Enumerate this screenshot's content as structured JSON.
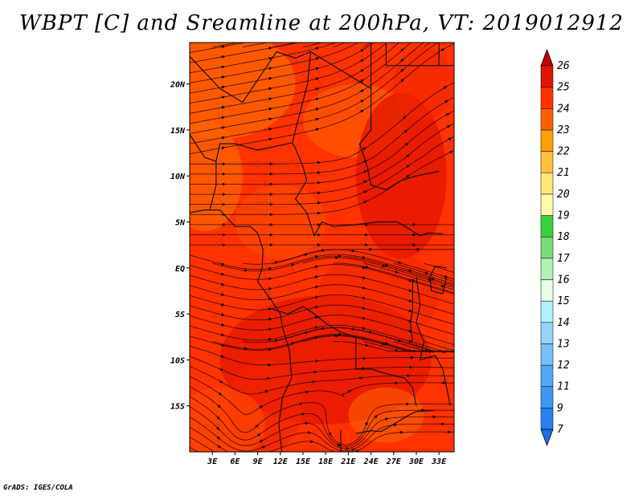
{
  "chart_data": {
    "type": "heatmap",
    "title": "WBPT [C] and Sreamline at 200hPa, VT: 2019012912",
    "xlim": [
      0,
      35
    ],
    "ylim": [
      -20,
      24.5
    ],
    "x_ticks": [
      {
        "value": 3,
        "label": "3E"
      },
      {
        "value": 6,
        "label": "6E"
      },
      {
        "value": 9,
        "label": "9E"
      },
      {
        "value": 12,
        "label": "12E"
      },
      {
        "value": 15,
        "label": "15E"
      },
      {
        "value": 18,
        "label": "18E"
      },
      {
        "value": 21,
        "label": "21E"
      },
      {
        "value": 24,
        "label": "24E"
      },
      {
        "value": 27,
        "label": "27E"
      },
      {
        "value": 30,
        "label": "30E"
      },
      {
        "value": 33,
        "label": "33E"
      }
    ],
    "y_ticks": [
      {
        "value": 20,
        "label": "20N"
      },
      {
        "value": 15,
        "label": "15N"
      },
      {
        "value": 10,
        "label": "10N"
      },
      {
        "value": 5,
        "label": "5N"
      },
      {
        "value": 0,
        "label": "EQ"
      },
      {
        "value": -5,
        "label": "5S"
      },
      {
        "value": -10,
        "label": "10S"
      },
      {
        "value": -15,
        "label": "15S"
      }
    ],
    "colorbar": {
      "levels": [
        "7",
        "9",
        "11",
        "12",
        "13",
        "14",
        "15",
        "16",
        "17",
        "18",
        "19",
        "20",
        "21",
        "22",
        "23",
        "24",
        "25",
        "26"
      ],
      "colors": [
        "#1e6ee6",
        "#2882f0",
        "#3c96f5",
        "#50aaf5",
        "#78c0fa",
        "#96d2fa",
        "#b4f0fa",
        "#e6ffe6",
        "#b4f0b4",
        "#78dc78",
        "#37d23c",
        "#fffaaa",
        "#ffe878",
        "#ffc03c",
        "#ffa000",
        "#ff6000",
        "#ff3200",
        "#e11400",
        "#c00000"
      ]
    },
    "field": {
      "description_values": "approximate WBPT 22-25 C over the domain",
      "range": [
        22,
        25
      ]
    }
  },
  "credit": "GrADS: IGES/COLA"
}
